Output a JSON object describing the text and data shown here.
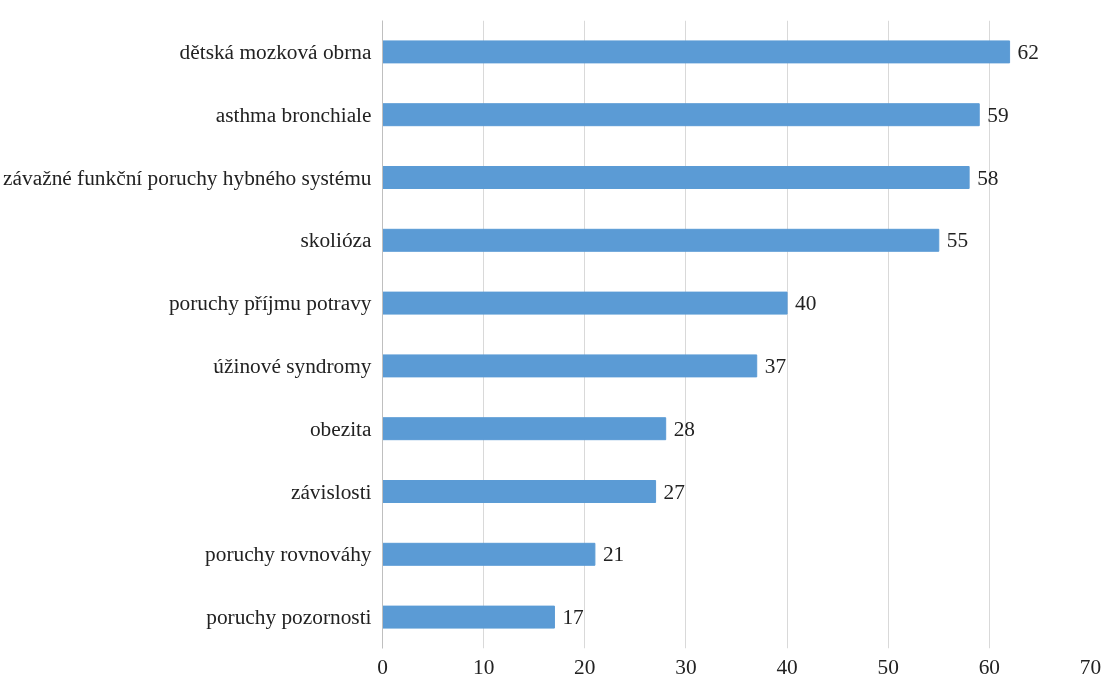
{
  "chart_data": {
    "type": "bar",
    "orientation": "horizontal",
    "categories": [
      "dětská mozková obrna",
      "asthma bronchiale",
      "závažné funkční poruchy hybného systému",
      "skolióza",
      "poruchy příjmu potravy",
      "úžinové syndromy",
      "obezita",
      "závislosti",
      "poruchy rovnováhy",
      "poruchy pozornosti"
    ],
    "values": [
      62,
      59,
      58,
      55,
      40,
      37,
      28,
      27,
      21,
      17
    ],
    "color": "#5b9bd5",
    "xlim": [
      0,
      70
    ],
    "xticks": [
      0,
      10,
      20,
      30,
      40,
      50,
      60,
      70
    ],
    "grid": "x",
    "data_labels": true
  }
}
